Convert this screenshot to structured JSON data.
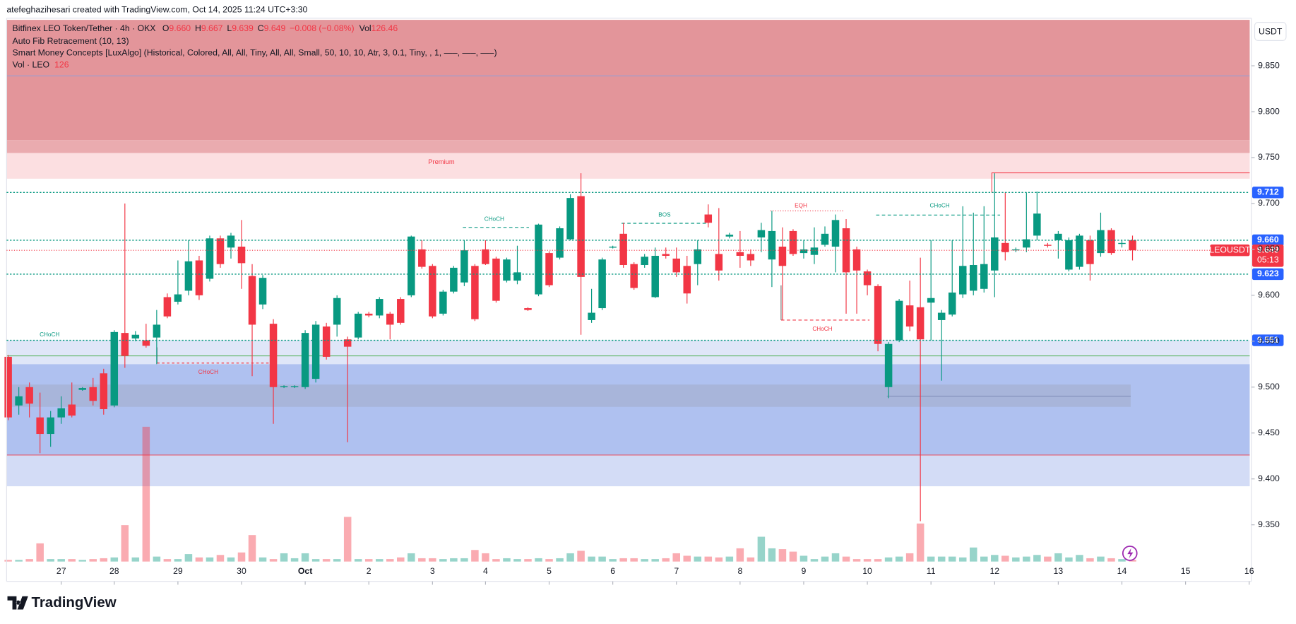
{
  "header": {
    "credit": "atefeghazihesari created with TradingView.com, Oct 14, 2025 11:24 UTC+3:30",
    "symbol": "Bitfinex LEO Token/Tether · 4h · OKX",
    "ohlc": [
      {
        "key": "O",
        "value": "9.660"
      },
      {
        "key": "H",
        "value": "9.667"
      },
      {
        "key": "L",
        "value": "9.639"
      },
      {
        "key": "C",
        "value": "9.649"
      }
    ],
    "change": "−0.008 (−0.08%)",
    "vol_key": "Vol",
    "vol_value": "126.46",
    "indicators": [
      "Auto Fib Retracement (10, 13)",
      "Smart Money Concepts [LuxAlgo] (Historical, Colored, All, All, Tiny, All, All, Small, 50, 10, 10, Atr, 3, 0.1, Tiny, , 1, —–, —–, —–)"
    ],
    "vol_name": "Vol · LEO",
    "vol_last": "126",
    "currency": "USDT"
  },
  "chart_data": {
    "type": "candlestick",
    "up_color": "#089981",
    "down_color": "#f23645",
    "open": [
      9.533,
      9.48,
      9.5,
      9.467,
      9.449,
      9.467,
      9.481,
      9.497,
      9.5,
      9.515,
      9.48,
      9.559,
      9.553,
      9.551,
      9.554,
      9.598,
      9.593,
      9.605,
      9.638,
      9.618,
      9.662,
      9.652,
      9.653,
      9.621,
      9.59,
      9.569,
      9.5,
      9.5,
      9.5,
      9.509,
      9.566,
      9.568,
      9.552,
      9.554,
      9.58,
      9.578,
      9.58,
      9.596,
      9.6,
      9.65,
      9.632,
      9.58,
      9.604,
      9.614,
      9.632,
      9.65,
      9.64,
      9.616,
      9.616,
      9.586,
      9.601,
      9.646,
      9.641,
      9.661,
      9.708,
      9.573,
      9.586,
      9.652,
      9.667,
      9.634,
      9.633,
      9.598,
      9.645,
      9.64,
      9.632,
      9.634,
      9.688,
      9.645,
      9.664,
      9.647,
      9.645,
      9.663,
      9.639,
      9.653,
      9.67,
      9.646,
      9.644,
      9.655,
      9.653,
      9.673,
      9.65,
      9.626,
      9.61,
      9.5,
      9.551,
      9.589,
      9.587,
      9.592,
      9.573,
      9.579,
      9.601,
      9.605,
      9.607,
      9.627,
      9.657,
      9.649,
      9.652,
      9.665,
      9.655,
      9.66,
      9.628,
      9.631,
      9.66,
      9.646,
      9.671,
      9.656,
      9.66
    ],
    "high": [
      9.535,
      9.5,
      9.505,
      9.494,
      9.474,
      9.49,
      9.505,
      9.5,
      9.51,
      9.52,
      9.562,
      9.7,
      9.561,
      9.569,
      9.584,
      9.602,
      9.638,
      9.66,
      9.643,
      9.665,
      9.665,
      9.668,
      9.682,
      9.634,
      9.622,
      9.574,
      9.502,
      9.502,
      9.562,
      9.572,
      9.57,
      9.6,
      9.555,
      9.582,
      9.582,
      9.598,
      9.582,
      9.598,
      9.665,
      9.66,
      9.634,
      9.606,
      9.632,
      9.66,
      9.634,
      9.66,
      9.642,
      9.641,
      9.654,
      9.587,
      9.678,
      9.648,
      9.675,
      9.71,
      9.733,
      9.607,
      9.641,
      9.654,
      9.679,
      9.636,
      9.645,
      9.652,
      9.652,
      9.652,
      9.643,
      9.66,
      9.699,
      9.695,
      9.668,
      9.67,
      9.65,
      9.679,
      9.692,
      9.674,
      9.672,
      9.66,
      9.674,
      9.675,
      9.688,
      9.683,
      9.653,
      9.628,
      9.612,
      9.549,
      9.596,
      9.616,
      9.641,
      9.66,
      9.584,
      9.66,
      9.697,
      9.69,
      9.697,
      9.733,
      9.712,
      9.652,
      9.712,
      9.713,
      9.657,
      9.67,
      9.663,
      9.667,
      9.665,
      9.69,
      9.673,
      9.66,
      9.665
    ],
    "low": [
      9.464,
      9.47,
      9.467,
      9.428,
      9.435,
      9.46,
      9.467,
      9.496,
      9.48,
      9.47,
      9.478,
      9.521,
      9.55,
      9.543,
      9.525,
      9.575,
      9.59,
      9.6,
      9.595,
      9.615,
      9.63,
      9.64,
      9.607,
      9.512,
      9.585,
      9.46,
      9.499,
      9.499,
      9.498,
      9.505,
      9.53,
      9.555,
      9.44,
      9.552,
      9.576,
      9.575,
      9.552,
      9.568,
      9.598,
      9.629,
      9.575,
      9.578,
      9.602,
      9.61,
      9.572,
      9.633,
      9.592,
      9.614,
      9.612,
      9.583,
      9.599,
      9.609,
      9.639,
      9.66,
      9.557,
      9.57,
      9.584,
      9.651,
      9.63,
      9.606,
      9.63,
      9.597,
      9.64,
      9.62,
      9.591,
      9.611,
      9.674,
      9.616,
      9.662,
      9.63,
      9.632,
      9.647,
      9.609,
      9.573,
      9.643,
      9.64,
      9.634,
      9.653,
      9.625,
      9.58,
      9.58,
      9.6,
      9.539,
      9.488,
      9.549,
      9.561,
      9.354,
      9.551,
      9.507,
      9.577,
      9.597,
      9.6,
      9.603,
      9.598,
      9.638,
      9.647,
      9.647,
      9.66,
      9.652,
      9.64,
      9.626,
      9.628,
      9.616,
      9.642,
      9.644,
      9.652,
      9.638
    ],
    "close": [
      9.467,
      9.49,
      9.482,
      9.449,
      9.467,
      9.477,
      9.469,
      9.499,
      9.485,
      9.476,
      9.56,
      9.534,
      9.557,
      9.545,
      9.568,
      9.577,
      9.601,
      9.637,
      9.6,
      9.662,
      9.634,
      9.665,
      9.635,
      9.568,
      9.619,
      9.5,
      9.501,
      9.501,
      9.559,
      9.568,
      9.533,
      9.597,
      9.544,
      9.58,
      9.578,
      9.596,
      9.568,
      9.57,
      9.664,
      9.631,
      9.577,
      9.604,
      9.63,
      9.649,
      9.574,
      9.634,
      9.594,
      9.639,
      9.625,
      9.584,
      9.677,
      9.611,
      9.673,
      9.706,
      9.62,
      9.581,
      9.639,
      9.653,
      9.633,
      9.608,
      9.642,
      9.643,
      9.643,
      9.625,
      9.602,
      9.65,
      9.679,
      9.627,
      9.666,
      9.643,
      9.638,
      9.671,
      9.67,
      9.632,
      9.645,
      9.65,
      9.652,
      9.667,
      9.682,
      9.625,
      9.627,
      9.611,
      9.547,
      9.547,
      9.594,
      9.566,
      9.552,
      9.597,
      9.581,
      9.603,
      9.632,
      9.633,
      9.634,
      9.663,
      9.647,
      9.65,
      9.661,
      9.689,
      9.654,
      9.667,
      9.66,
      9.665,
      9.634,
      9.671,
      9.646,
      9.657,
      9.649
    ],
    "volume": [
      120,
      120,
      180,
      1320,
      180,
      180,
      180,
      120,
      180,
      240,
      300,
      2640,
      300,
      9780,
      360,
      180,
      180,
      540,
      300,
      300,
      480,
      300,
      660,
      1920,
      300,
      180,
      600,
      240,
      600,
      180,
      180,
      180,
      3240,
      180,
      180,
      180,
      180,
      300,
      600,
      240,
      240,
      180,
      240,
      240,
      840,
      600,
      180,
      240,
      180,
      180,
      240,
      180,
      240,
      600,
      780,
      360,
      360,
      180,
      240,
      240,
      180,
      180,
      240,
      600,
      420,
      360,
      360,
      300,
      360,
      960,
      300,
      1800,
      960,
      900,
      720,
      420,
      180,
      360,
      600,
      360,
      180,
      180,
      180,
      300,
      360,
      600,
      2760,
      360,
      360,
      360,
      300,
      1020,
      360,
      480,
      420,
      300,
      360,
      480,
      360,
      600,
      300,
      480,
      240,
      360,
      240,
      180,
      126
    ],
    "xlim": [
      -0.15,
      117.05
    ],
    "xticks": [
      {
        "value": 5,
        "label": "27"
      },
      {
        "value": 10,
        "label": "28"
      },
      {
        "value": 16,
        "label": "29"
      },
      {
        "value": 22,
        "label": "30"
      },
      {
        "value": 28,
        "label": "Oct"
      },
      {
        "value": 34,
        "label": "2"
      },
      {
        "value": 40,
        "label": "3"
      },
      {
        "value": 45,
        "label": "4"
      },
      {
        "value": 51,
        "label": "5"
      },
      {
        "value": 57,
        "label": "6"
      },
      {
        "value": 63,
        "label": "7"
      },
      {
        "value": 69,
        "label": "8"
      },
      {
        "value": 75,
        "label": "9"
      },
      {
        "value": 81,
        "label": "10"
      },
      {
        "value": 87,
        "label": "11"
      },
      {
        "value": 93,
        "label": "12"
      },
      {
        "value": 99,
        "label": "13"
      },
      {
        "value": 105,
        "label": "14"
      },
      {
        "value": 111,
        "label": "15"
      },
      {
        "value": 117,
        "label": "16"
      }
    ],
    "ylim": [
      9.31,
      9.9
    ],
    "yticks": [
      {
        "value": 9.35,
        "label": "9.350"
      },
      {
        "value": 9.4,
        "label": "9.400"
      },
      {
        "value": 9.45,
        "label": "9.450"
      },
      {
        "value": 9.5,
        "label": "9.500"
      },
      {
        "value": 9.55,
        "label": "9.550"
      },
      {
        "value": 9.6,
        "label": "9.600"
      },
      {
        "value": 9.65,
        "label": "9.650"
      },
      {
        "value": 9.7,
        "label": "9.700"
      },
      {
        "value": 9.75,
        "label": "9.750"
      },
      {
        "value": 9.8,
        "label": "9.800"
      },
      {
        "value": 9.85,
        "label": "9.850"
      }
    ],
    "zones": [
      {
        "top": 9.9,
        "bottom": 9.769,
        "color": "#e3959a"
      },
      {
        "top": 9.769,
        "bottom": 9.755,
        "color": "#eaabaf"
      },
      {
        "top": 9.755,
        "bottom": 9.727,
        "color": "#fcdfe1"
      },
      {
        "top": 9.551,
        "bottom": 9.525,
        "color": "#dfe6f8"
      },
      {
        "top": 9.525,
        "bottom": 9.426,
        "color": "#afc1f0"
      },
      {
        "top": 9.426,
        "bottom": 9.392,
        "color": "#d3dcf6"
      }
    ],
    "levels": [
      {
        "value": 9.839,
        "color": "#8ea0dc"
      },
      {
        "value": 9.534,
        "color": "#4caf50"
      },
      {
        "value": 9.426,
        "color": "#f23645"
      }
    ],
    "price_tags": [
      {
        "value": 9.712,
        "label": "9.712",
        "color": "#2962ff"
      },
      {
        "value": 9.66,
        "label": "9.660",
        "color": "#2962ff"
      },
      {
        "value": 9.623,
        "label": "9.623",
        "color": "#2962ff"
      },
      {
        "value": 9.551,
        "label": "9.551",
        "color": "#2962ff"
      }
    ],
    "last_price": {
      "value": 9.649,
      "label": "9.649",
      "symbol": "LEOUSDT",
      "countdown": "05:13",
      "color": "#f23645"
    },
    "annotations": [
      {
        "text": "Premium",
        "color": "#f23645"
      },
      {
        "text": "CHoCH",
        "color": "#089981"
      },
      {
        "text": "CHoCH",
        "color": "#f23645"
      },
      {
        "text": "CHoCH",
        "color": "#089981"
      },
      {
        "text": "BOS",
        "color": "#089981"
      },
      {
        "text": "EQH",
        "color": "#f23645"
      },
      {
        "text": "CHoCH",
        "color": "#f23645"
      },
      {
        "text": "CHoCH",
        "color": "#089981"
      }
    ]
  },
  "footer": {
    "brand": "TradingView"
  }
}
